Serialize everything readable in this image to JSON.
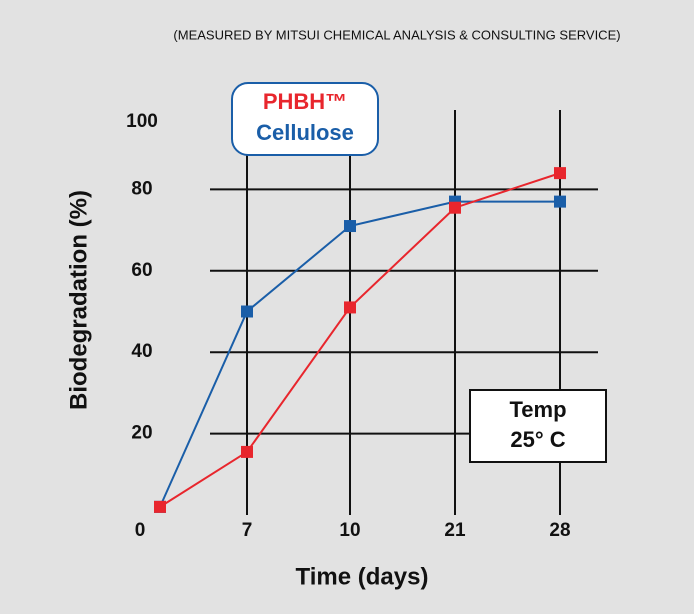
{
  "chart_data": {
    "type": "line",
    "title": "(MEASURED BY MITSUI CHEMICAL ANALYSIS & CONSULTING SERVICE)",
    "x_label": "Time (days)",
    "y_label": "Biodegradation (%)",
    "categories": [
      "0",
      "7",
      "10",
      "21",
      "28"
    ],
    "series": [
      {
        "name": "PHBH™",
        "color": "#e8262d",
        "values": [
          2,
          15.5,
          51,
          75.5,
          84
        ]
      },
      {
        "name": "Cellulose",
        "color": "#1a5ea8",
        "values": [
          2,
          50,
          71,
          77,
          77
        ]
      }
    ],
    "ylim": [
      0,
      100
    ],
    "yticks": [
      0,
      20,
      40,
      60,
      80,
      100
    ],
    "grid": true,
    "annotation": [
      "Temp",
      "25° C"
    ]
  }
}
